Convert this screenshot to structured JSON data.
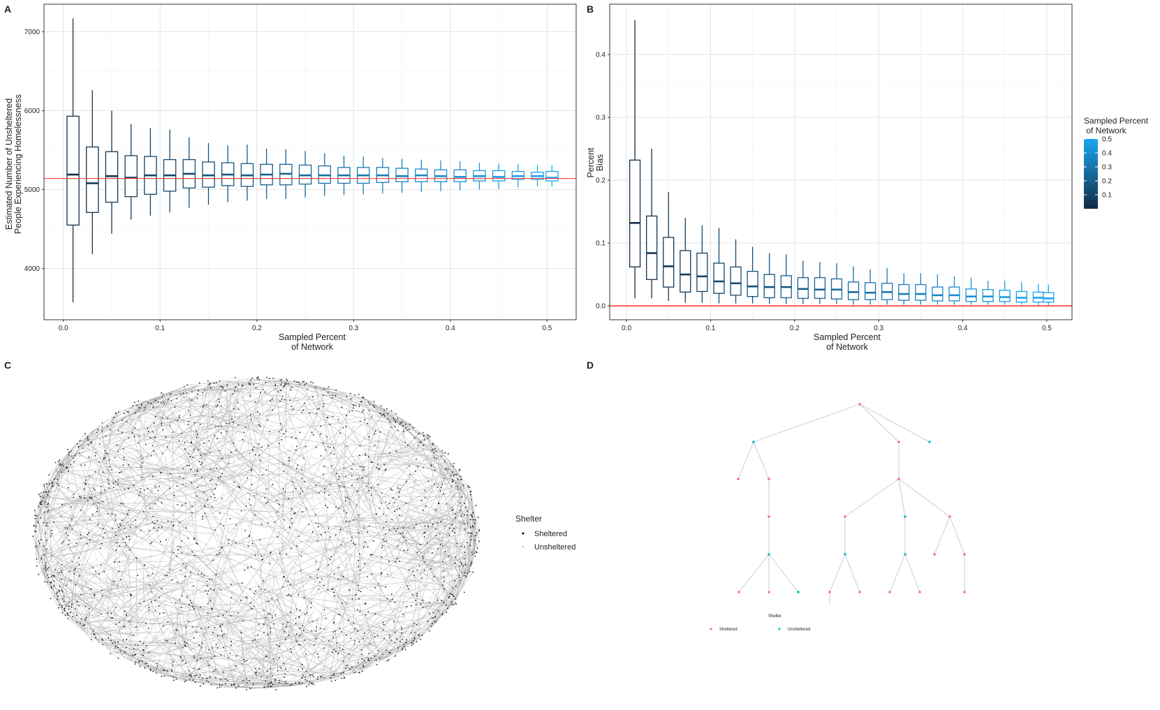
{
  "panels": {
    "a": {
      "letter": "A",
      "chart_data": {
        "type": "box",
        "xlabel_lines": [
          "Sampled Percent",
          "of Network"
        ],
        "ylabel_lines": [
          "Estimated Number of Unsheltered",
          "People Experiencing Homelessness"
        ],
        "xlim": [
          -0.02,
          0.53
        ],
        "ylim": [
          3350,
          7350
        ],
        "x_ticks": [
          0.0,
          0.1,
          0.2,
          0.3,
          0.4,
          0.5
        ],
        "x_tick_labels": [
          "0.0",
          "0.1",
          "0.2",
          "0.3",
          "0.4",
          "0.5"
        ],
        "y_ticks": [
          4000,
          5000,
          6000,
          7000
        ],
        "y_tick_labels": [
          "4000",
          "5000",
          "6000",
          "7000"
        ],
        "reference_line": 5140,
        "boxes": [
          {
            "x": 0.01,
            "min": 3570,
            "q1": 4550,
            "median": 5190,
            "q3": 5930,
            "max": 7170
          },
          {
            "x": 0.03,
            "min": 4180,
            "q1": 4710,
            "median": 5080,
            "q3": 5540,
            "max": 6260
          },
          {
            "x": 0.05,
            "min": 4440,
            "q1": 4840,
            "median": 5170,
            "q3": 5480,
            "max": 6000
          },
          {
            "x": 0.07,
            "min": 4620,
            "q1": 4910,
            "median": 5150,
            "q3": 5430,
            "max": 5830
          },
          {
            "x": 0.09,
            "min": 4670,
            "q1": 4940,
            "median": 5180,
            "q3": 5420,
            "max": 5780
          },
          {
            "x": 0.11,
            "min": 4710,
            "q1": 4980,
            "median": 5180,
            "q3": 5380,
            "max": 5760
          },
          {
            "x": 0.13,
            "min": 4770,
            "q1": 5020,
            "median": 5200,
            "q3": 5380,
            "max": 5660
          },
          {
            "x": 0.15,
            "min": 4810,
            "q1": 5030,
            "median": 5180,
            "q3": 5350,
            "max": 5590
          },
          {
            "x": 0.17,
            "min": 4840,
            "q1": 5050,
            "median": 5190,
            "q3": 5340,
            "max": 5560
          },
          {
            "x": 0.19,
            "min": 4860,
            "q1": 5040,
            "median": 5180,
            "q3": 5330,
            "max": 5570
          },
          {
            "x": 0.21,
            "min": 4880,
            "q1": 5060,
            "median": 5190,
            "q3": 5320,
            "max": 5520
          },
          {
            "x": 0.23,
            "min": 4880,
            "q1": 5060,
            "median": 5200,
            "q3": 5320,
            "max": 5510
          },
          {
            "x": 0.25,
            "min": 4900,
            "q1": 5070,
            "median": 5180,
            "q3": 5310,
            "max": 5490
          },
          {
            "x": 0.27,
            "min": 4920,
            "q1": 5080,
            "median": 5180,
            "q3": 5300,
            "max": 5460
          },
          {
            "x": 0.29,
            "min": 4930,
            "q1": 5080,
            "median": 5180,
            "q3": 5280,
            "max": 5430
          },
          {
            "x": 0.31,
            "min": 4940,
            "q1": 5080,
            "median": 5180,
            "q3": 5280,
            "max": 5420
          },
          {
            "x": 0.33,
            "min": 4950,
            "q1": 5090,
            "median": 5180,
            "q3": 5280,
            "max": 5400
          },
          {
            "x": 0.35,
            "min": 4960,
            "q1": 5100,
            "median": 5170,
            "q3": 5270,
            "max": 5390
          },
          {
            "x": 0.37,
            "min": 4970,
            "q1": 5100,
            "median": 5180,
            "q3": 5260,
            "max": 5380
          },
          {
            "x": 0.39,
            "min": 4980,
            "q1": 5100,
            "median": 5170,
            "q3": 5250,
            "max": 5370
          },
          {
            "x": 0.41,
            "min": 4990,
            "q1": 5100,
            "median": 5160,
            "q3": 5250,
            "max": 5360
          },
          {
            "x": 0.43,
            "min": 5000,
            "q1": 5110,
            "median": 5170,
            "q3": 5240,
            "max": 5340
          },
          {
            "x": 0.45,
            "min": 5010,
            "q1": 5110,
            "median": 5160,
            "q3": 5240,
            "max": 5330
          },
          {
            "x": 0.47,
            "min": 5030,
            "q1": 5130,
            "median": 5170,
            "q3": 5230,
            "max": 5320
          },
          {
            "x": 0.49,
            "min": 5040,
            "q1": 5130,
            "median": 5170,
            "q3": 5220,
            "max": 5310
          },
          {
            "x": 0.505,
            "min": 5040,
            "q1": 5110,
            "median": 5150,
            "q3": 5230,
            "max": 5310
          }
        ]
      }
    },
    "b": {
      "letter": "B",
      "chart_data": {
        "type": "box",
        "xlabel_lines": [
          "Sampled Percent",
          "of Network"
        ],
        "ylabel_lines": [
          "Percent",
          "Bias"
        ],
        "xlim": [
          -0.02,
          0.53
        ],
        "ylim": [
          -0.022,
          0.48
        ],
        "x_ticks": [
          0.0,
          0.1,
          0.2,
          0.3,
          0.4,
          0.5
        ],
        "x_tick_labels": [
          "0.0",
          "0.1",
          "0.2",
          "0.3",
          "0.4",
          "0.5"
        ],
        "y_ticks": [
          0.0,
          0.1,
          0.2,
          0.3,
          0.4
        ],
        "y_tick_labels": [
          "0.0",
          "0.1",
          "0.2",
          "0.3",
          "0.4"
        ],
        "reference_line": 0.0,
        "boxes": [
          {
            "x": 0.01,
            "min": 0.012,
            "q1": 0.062,
            "median": 0.132,
            "q3": 0.232,
            "max": 0.455
          },
          {
            "x": 0.03,
            "min": 0.012,
            "q1": 0.042,
            "median": 0.084,
            "q3": 0.143,
            "max": 0.25
          },
          {
            "x": 0.05,
            "min": 0.008,
            "q1": 0.03,
            "median": 0.063,
            "q3": 0.109,
            "max": 0.181
          },
          {
            "x": 0.07,
            "min": 0.005,
            "q1": 0.022,
            "median": 0.05,
            "q3": 0.088,
            "max": 0.14
          },
          {
            "x": 0.09,
            "min": 0.005,
            "q1": 0.023,
            "median": 0.047,
            "q3": 0.084,
            "max": 0.128
          },
          {
            "x": 0.11,
            "min": 0.004,
            "q1": 0.02,
            "median": 0.039,
            "q3": 0.068,
            "max": 0.124
          },
          {
            "x": 0.13,
            "min": 0.004,
            "q1": 0.017,
            "median": 0.036,
            "q3": 0.062,
            "max": 0.106
          },
          {
            "x": 0.15,
            "min": 0.004,
            "q1": 0.015,
            "median": 0.031,
            "q3": 0.055,
            "max": 0.094
          },
          {
            "x": 0.17,
            "min": 0.003,
            "q1": 0.013,
            "median": 0.03,
            "q3": 0.05,
            "max": 0.084
          },
          {
            "x": 0.19,
            "min": 0.003,
            "q1": 0.013,
            "median": 0.03,
            "q3": 0.048,
            "max": 0.082
          },
          {
            "x": 0.21,
            "min": 0.003,
            "q1": 0.012,
            "median": 0.027,
            "q3": 0.045,
            "max": 0.072
          },
          {
            "x": 0.23,
            "min": 0.003,
            "q1": 0.012,
            "median": 0.026,
            "q3": 0.045,
            "max": 0.07
          },
          {
            "x": 0.25,
            "min": 0.003,
            "q1": 0.011,
            "median": 0.026,
            "q3": 0.043,
            "max": 0.068
          },
          {
            "x": 0.27,
            "min": 0.002,
            "q1": 0.01,
            "median": 0.022,
            "q3": 0.038,
            "max": 0.063
          },
          {
            "x": 0.29,
            "min": 0.002,
            "q1": 0.01,
            "median": 0.021,
            "q3": 0.037,
            "max": 0.058
          },
          {
            "x": 0.31,
            "min": 0.002,
            "q1": 0.01,
            "median": 0.022,
            "q3": 0.036,
            "max": 0.06
          },
          {
            "x": 0.33,
            "min": 0.002,
            "q1": 0.009,
            "median": 0.019,
            "q3": 0.034,
            "max": 0.052
          },
          {
            "x": 0.35,
            "min": 0.002,
            "q1": 0.009,
            "median": 0.019,
            "q3": 0.034,
            "max": 0.052
          },
          {
            "x": 0.37,
            "min": 0.002,
            "q1": 0.008,
            "median": 0.017,
            "q3": 0.03,
            "max": 0.05
          },
          {
            "x": 0.39,
            "min": 0.002,
            "q1": 0.008,
            "median": 0.017,
            "q3": 0.03,
            "max": 0.047
          },
          {
            "x": 0.41,
            "min": 0.002,
            "q1": 0.007,
            "median": 0.015,
            "q3": 0.027,
            "max": 0.045
          },
          {
            "x": 0.43,
            "min": 0.002,
            "q1": 0.007,
            "median": 0.015,
            "q3": 0.026,
            "max": 0.04
          },
          {
            "x": 0.45,
            "min": 0.002,
            "q1": 0.007,
            "median": 0.014,
            "q3": 0.025,
            "max": 0.04
          },
          {
            "x": 0.47,
            "min": 0.002,
            "q1": 0.006,
            "median": 0.013,
            "q3": 0.023,
            "max": 0.038
          },
          {
            "x": 0.49,
            "min": 0.001,
            "q1": 0.006,
            "median": 0.013,
            "q3": 0.022,
            "max": 0.035
          },
          {
            "x": 0.502,
            "min": 0.001,
            "q1": 0.006,
            "median": 0.012,
            "q3": 0.021,
            "max": 0.034
          }
        ]
      },
      "legend": {
        "title_lines": [
          "Sampled Percent",
          " of Network"
        ],
        "ticks": [
          0.1,
          0.2,
          0.3,
          0.4,
          0.5
        ],
        "tick_labels": [
          "0.1",
          "0.2",
          "0.3",
          "0.4",
          "0.5"
        ],
        "range": [
          0.0,
          0.5
        ],
        "color_low": "#132b43",
        "color_high": "#1aa7f2"
      }
    },
    "c": {
      "letter": "C",
      "chart_data": {
        "type": "network",
        "description_counts": {
          "nodes": 1400,
          "edges": 2400
        },
        "node_color": "#1a1a1a",
        "edge_color": "#222222"
      },
      "legend": {
        "title": "Shelter",
        "items": [
          {
            "label": "Sheltered",
            "color": "#1a1a1a"
          },
          {
            "label": "Unsheltered",
            "color": "#bdbdbd"
          }
        ]
      }
    },
    "d": {
      "letter": "D",
      "chart_data": {
        "type": "tree",
        "categories": [
          "Sheltered",
          "Unsheltered"
        ],
        "colors": {
          "Sheltered": "#f8766d",
          "Unsheltered": "#00bfc4"
        },
        "nodes": [
          {
            "id": "n1",
            "group": "Sheltered"
          },
          {
            "id": "n2",
            "group": "Unsheltered"
          },
          {
            "id": "n3",
            "group": "Sheltered"
          },
          {
            "id": "n4",
            "group": "Unsheltered"
          },
          {
            "id": "n5",
            "group": "Sheltered"
          },
          {
            "id": "n6",
            "group": "Sheltered"
          },
          {
            "id": "n7",
            "group": "Sheltered"
          },
          {
            "id": "n8",
            "group": "Sheltered"
          },
          {
            "id": "n9",
            "group": "Sheltered"
          },
          {
            "id": "n10",
            "group": "Unsheltered"
          },
          {
            "id": "n11",
            "group": "Unsheltered"
          },
          {
            "id": "n12",
            "group": "Sheltered"
          },
          {
            "id": "n13",
            "group": "Unsheltered"
          },
          {
            "id": "n14",
            "group": "Unsheltered"
          },
          {
            "id": "n15",
            "group": "Sheltered"
          },
          {
            "id": "n16",
            "group": "Sheltered"
          },
          {
            "id": "n17",
            "group": "Sheltered"
          },
          {
            "id": "n18",
            "group": "Unsheltered"
          },
          {
            "id": "n19",
            "group": "Sheltered"
          },
          {
            "id": "n20",
            "group": "Sheltered"
          },
          {
            "id": "n21",
            "group": "Sheltered"
          },
          {
            "id": "n22",
            "group": "Sheltered"
          },
          {
            "id": "n23",
            "group": "Sheltered"
          }
        ],
        "edges": [
          [
            "n1",
            "n2"
          ],
          [
            "n1",
            "n3"
          ],
          [
            "n1",
            "n4"
          ],
          [
            "n2",
            "n5"
          ],
          [
            "n2",
            "n6"
          ],
          [
            "n6",
            "n7"
          ],
          [
            "n7",
            "n10"
          ],
          [
            "n10",
            "n16"
          ],
          [
            "n10",
            "n17"
          ],
          [
            "n10",
            "n18"
          ],
          [
            "n3",
            "n8"
          ],
          [
            "n8",
            "n9"
          ],
          [
            "n8",
            "n11"
          ],
          [
            "n8",
            "n12"
          ],
          [
            "n9",
            "n13"
          ],
          [
            "n13",
            "n19"
          ],
          [
            "n13",
            "n20"
          ],
          [
            "n11",
            "n14"
          ],
          [
            "n14",
            "n21"
          ],
          [
            "n14",
            "n22"
          ],
          [
            "n12",
            "n15"
          ],
          [
            "n12",
            "n23"
          ]
        ]
      },
      "legend": {
        "title": "Shelter",
        "items": [
          {
            "label": "Sheltered",
            "color": "#f8766d"
          },
          {
            "label": "Unsheltered",
            "color": "#00bfc4"
          }
        ]
      }
    }
  }
}
